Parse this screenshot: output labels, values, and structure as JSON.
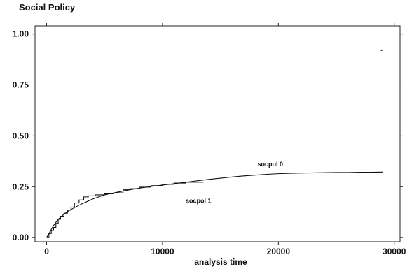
{
  "chart_data": {
    "type": "line",
    "title": "Social Policy",
    "xlabel": "analysis time",
    "ylabel": "",
    "xlim": [
      -1000,
      30500
    ],
    "ylim": [
      -0.02,
      1.04
    ],
    "xticks": [
      0,
      10000,
      20000,
      30000
    ],
    "xtick_labels": [
      "0",
      "10000",
      "20000",
      "30000"
    ],
    "yticks": [
      0.0,
      0.25,
      0.5,
      0.75,
      1.0
    ],
    "ytick_labels": [
      "0.00",
      "0.25",
      "0.50",
      "0.75",
      "1.00"
    ],
    "grid": false,
    "legend": "none",
    "series": [
      {
        "name": "socpol 0",
        "shape": "smooth",
        "x": [
          0,
          300,
          600,
          1000,
          1500,
          2000,
          3000,
          4000,
          5000,
          6000,
          7000,
          8000,
          9000,
          10000,
          11000,
          12000,
          13000,
          14000,
          15000,
          16000,
          17000,
          18000,
          19000,
          20000,
          21000,
          22000,
          23000,
          24000,
          25000,
          26000,
          27000,
          28000,
          29000
        ],
        "y": [
          0.0,
          0.03,
          0.06,
          0.09,
          0.115,
          0.135,
          0.165,
          0.19,
          0.21,
          0.222,
          0.233,
          0.243,
          0.251,
          0.258,
          0.265,
          0.272,
          0.279,
          0.286,
          0.292,
          0.298,
          0.303,
          0.307,
          0.311,
          0.314,
          0.316,
          0.317,
          0.318,
          0.319,
          0.32,
          0.32,
          0.321,
          0.321,
          0.322
        ]
      },
      {
        "name": "socpol 1",
        "shape": "step",
        "x": [
          0,
          200,
          400,
          600,
          800,
          1000,
          1200,
          1500,
          1800,
          2100,
          2400,
          2800,
          3200,
          3600,
          4200,
          5000,
          5800,
          6600,
          7200,
          8000,
          9000,
          10000,
          11000,
          12000,
          13500
        ],
        "y": [
          0.0,
          0.02,
          0.035,
          0.05,
          0.07,
          0.09,
          0.105,
          0.12,
          0.135,
          0.15,
          0.17,
          0.185,
          0.2,
          0.205,
          0.21,
          0.215,
          0.22,
          0.235,
          0.24,
          0.248,
          0.255,
          0.262,
          0.268,
          0.272,
          0.275
        ]
      }
    ],
    "annotations": [
      {
        "text": "socpol 0",
        "x": 18200,
        "y": 0.35
      },
      {
        "text": "socpol 1",
        "x": 12000,
        "y": 0.17
      }
    ],
    "stray_points": [
      {
        "x": 28900,
        "y": 0.92
      }
    ]
  }
}
